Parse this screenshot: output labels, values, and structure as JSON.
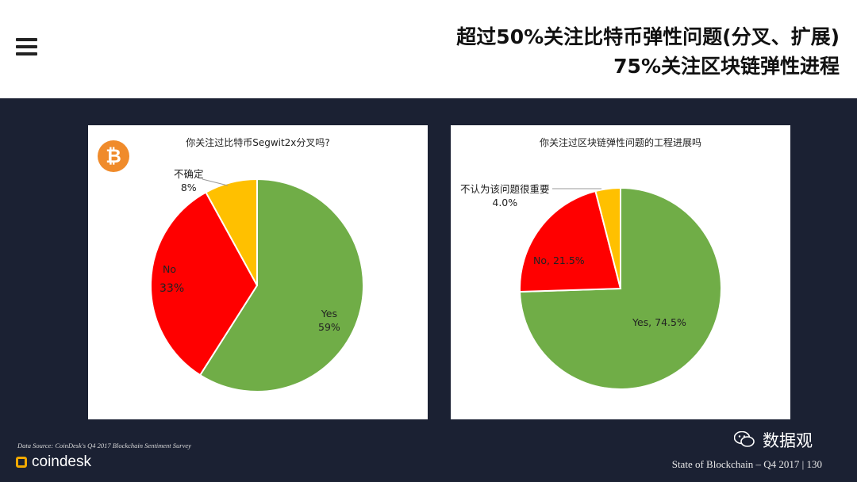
{
  "header": {
    "title_line1": "超过50%关注比特币弹性问题(分叉、扩展)",
    "title_line2": "75%关注区块链弹性进程"
  },
  "panels": {
    "left": {
      "title": "你关注过比特币Segwit2x分叉吗?",
      "icon": "bitcoin-icon",
      "labels": {
        "unsure_name": "不确定",
        "unsure_pct": "8%",
        "no_name": "No",
        "no_pct": "33%",
        "yes_name": "Yes",
        "yes_pct": "59%"
      }
    },
    "right": {
      "title": "你关注过区块链弹性问题的工程进展吗",
      "labels": {
        "small_name": "不认为该问题很重要",
        "small_pct": "4.0%",
        "no": "No, 21.5%",
        "yes": "Yes, 74.5%"
      }
    }
  },
  "chart_data": [
    {
      "type": "pie",
      "title": "你关注过比特币Segwit2x分叉吗?",
      "slices": [
        {
          "label": "Yes",
          "value": 59,
          "color": "#70ad47"
        },
        {
          "label": "No",
          "value": 33,
          "color": "#ff0000"
        },
        {
          "label": "不确定",
          "value": 8,
          "color": "#ffc000"
        }
      ]
    },
    {
      "type": "pie",
      "title": "你关注过区块链弹性问题的工程进展吗",
      "slices": [
        {
          "label": "Yes",
          "value": 74.5,
          "color": "#70ad47"
        },
        {
          "label": "No",
          "value": 21.5,
          "color": "#ff0000"
        },
        {
          "label": "不认为该问题很重要",
          "value": 4.0,
          "color": "#ffc000"
        }
      ]
    }
  ],
  "footer": {
    "source": "Data Source: CoinDesk's Q4 2017 Blockchain Sentiment Survey",
    "logo_text": "coindesk",
    "wechat_label": "数据观",
    "page_info": "State of Blockchain – Q4 2017    |    130"
  }
}
